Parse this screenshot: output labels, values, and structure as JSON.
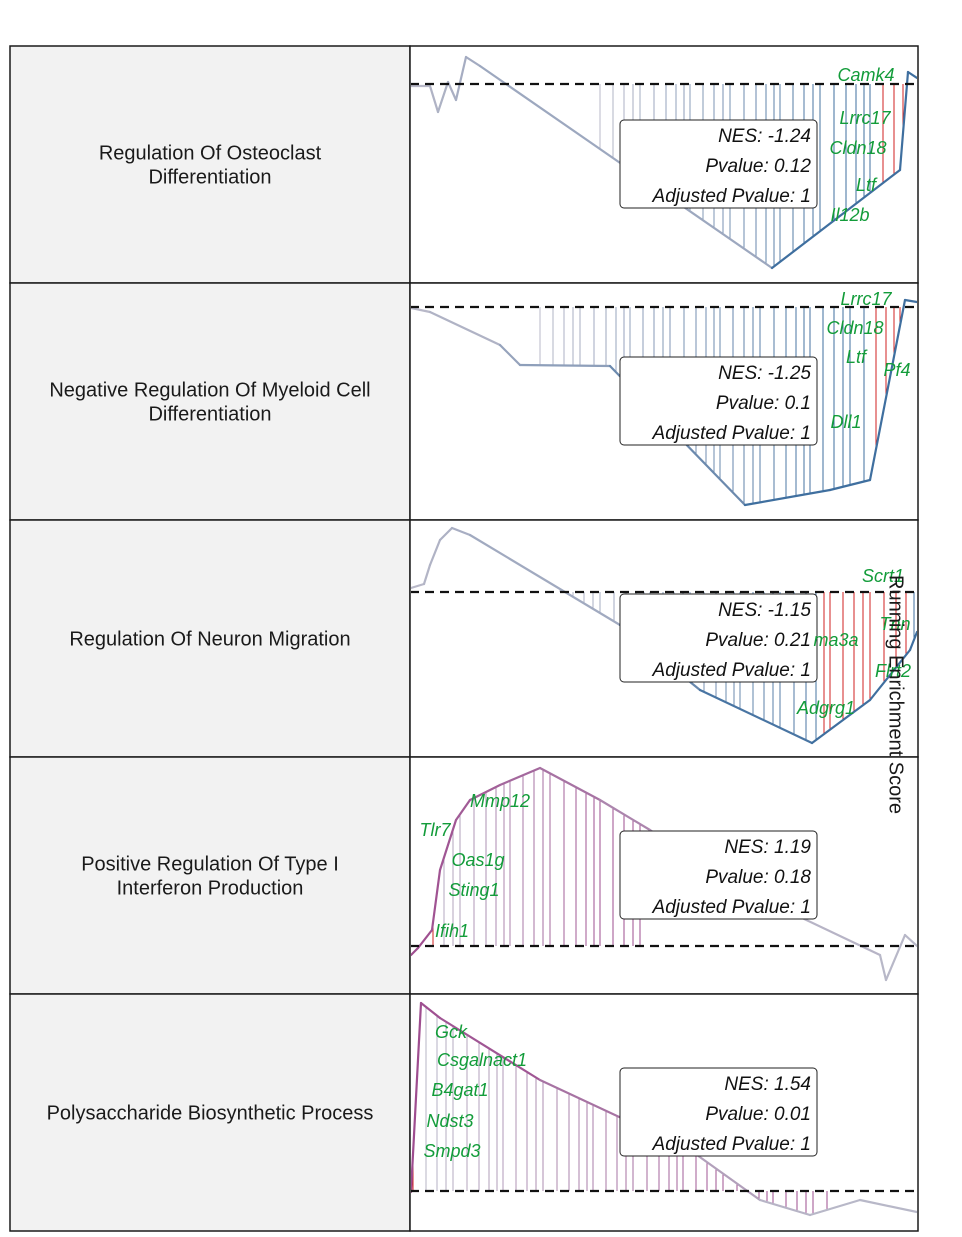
{
  "ylabel": "Running Enrichment Score",
  "chart_data": {
    "type": "line",
    "description_axis": "gene set enrichment running score panels",
    "panels": [
      {
        "term": "Regulation Of Osteoclast Differentiation",
        "nes": "NES: -1.24",
        "pvalue": "Pvalue: 0.12",
        "adj_pvalue": "Adjusted Pvalue: 1",
        "direction": "negative",
        "genes": [
          "Camk4",
          "Lrrc17",
          "Cldn18",
          "Ltf",
          "Il12b"
        ]
      },
      {
        "term": "Negative Regulation Of Myeloid Cell Differentiation",
        "nes": "NES: -1.25",
        "pvalue": "Pvalue: 0.1",
        "adj_pvalue": "Adjusted Pvalue: 1",
        "direction": "negative",
        "genes": [
          "Lrrc17",
          "Cldn18",
          "Ltf",
          "Pf4",
          "Dll1"
        ]
      },
      {
        "term": "Regulation Of Neuron Migration",
        "nes": "NES: -1.15",
        "pvalue": "Pvalue: 0.21",
        "adj_pvalue": "Adjusted Pvalue: 1",
        "direction": "negative",
        "genes": [
          "Scrt1",
          "Tnn",
          "ma3a",
          "Flrt2",
          "Adgrg1"
        ]
      },
      {
        "term": "Positive Regulation Of Type I Interferon Production",
        "nes": "NES: 1.19",
        "pvalue": "Pvalue: 0.18",
        "adj_pvalue": "Adjusted Pvalue: 1",
        "direction": "positive",
        "genes": [
          "Mmp12",
          "Tlr7",
          "Oas1g",
          "Sting1",
          "Ifih1"
        ]
      },
      {
        "term": "Polysaccharide Biosynthetic Process",
        "nes": "NES: 1.54",
        "pvalue": "Pvalue: 0.01",
        "adj_pvalue": "Adjusted Pvalue: 1",
        "direction": "positive",
        "genes": [
          "Gck",
          "Csgalnact1",
          "B4gat1",
          "Ndst3",
          "Smpd3"
        ]
      }
    ],
    "colors": {
      "label_bg": "#f2f2f2",
      "gene_label": "#139c3a",
      "neg_curve": "#3f6f9f",
      "pos_curve": "#9e4d8f",
      "leading_edge": "#d22020",
      "neutral": "#b8b8c8"
    }
  }
}
